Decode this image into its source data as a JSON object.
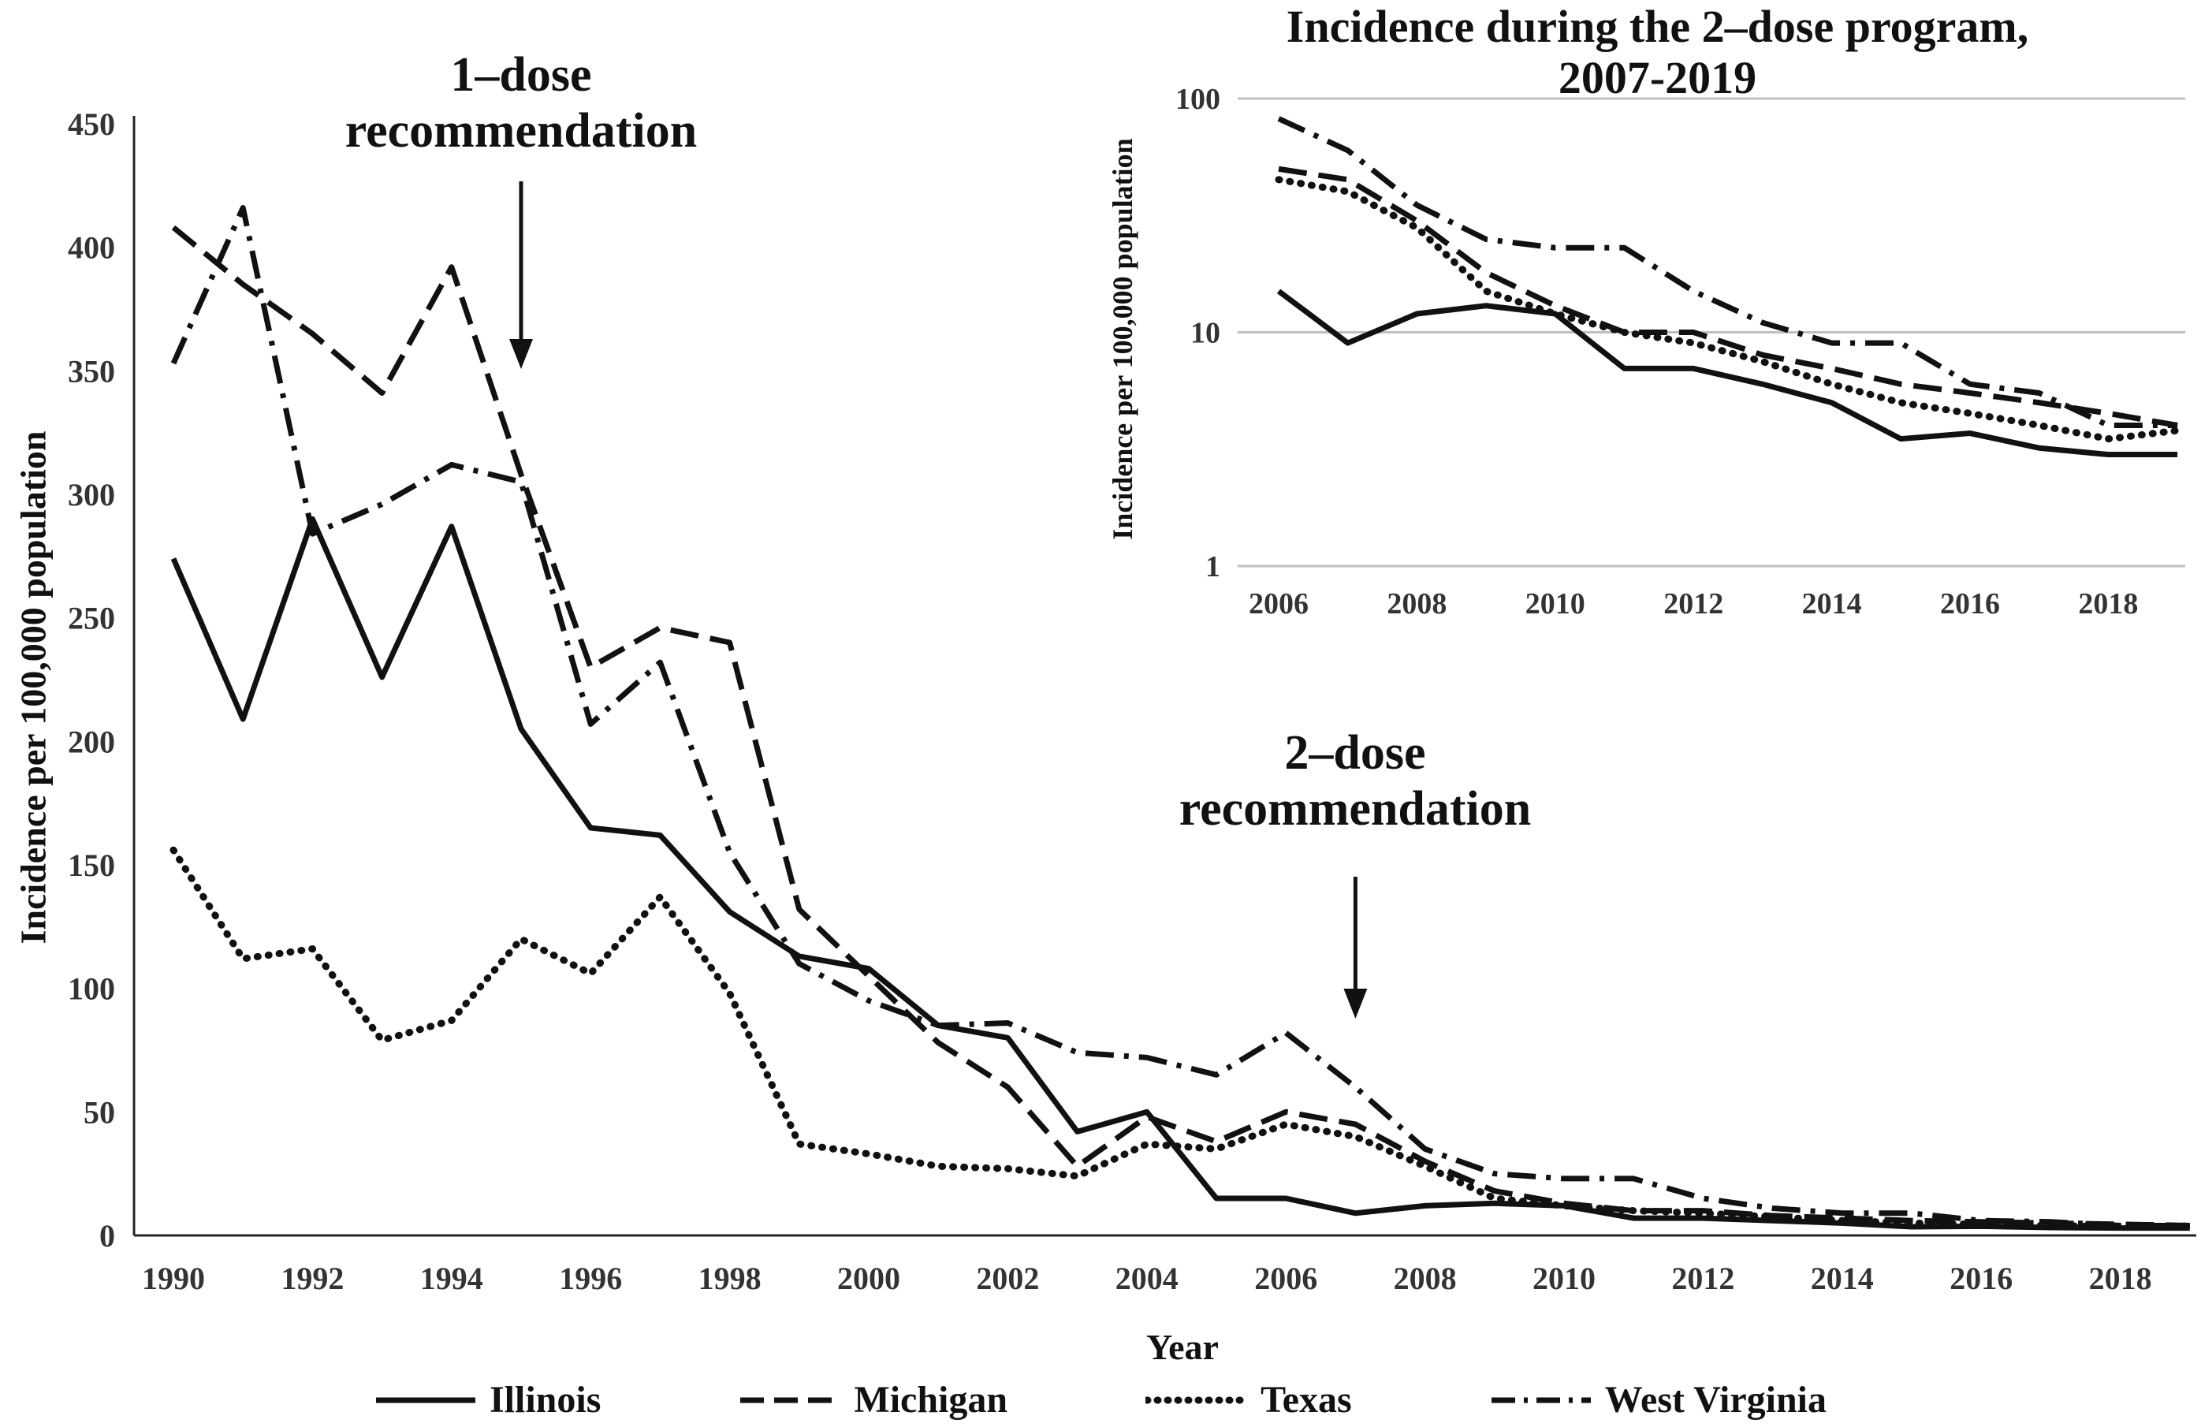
{
  "figure": {
    "background": "#ffffff",
    "line_color": "#111111",
    "axis_color": "#262626",
    "grid_color": "#bfbfbf"
  },
  "main_chart": {
    "ylabel": "Incidence per 100,000 population",
    "xlabel": "Year",
    "yticks": [
      0,
      50,
      100,
      150,
      200,
      250,
      300,
      350,
      400,
      450
    ],
    "xticks": [
      1990,
      1992,
      1994,
      1996,
      1998,
      2000,
      2002,
      2004,
      2006,
      2008,
      2010,
      2012,
      2014,
      2016,
      2018
    ]
  },
  "annotations": {
    "dose1": {
      "line1": "1–dose",
      "line2": "recommendation"
    },
    "dose2": {
      "line1": "2–dose",
      "line2": "recommendation"
    }
  },
  "inset_chart": {
    "title_line1": "Incidence during the 2–dose program,",
    "title_line2": "2007-2019",
    "ylabel": "Incidence per 100,000 population",
    "yticks": [
      1,
      10,
      100
    ],
    "xticks": [
      2006,
      2008,
      2010,
      2012,
      2014,
      2016,
      2018
    ]
  },
  "legend": [
    {
      "label": "Illinois",
      "style": "solid"
    },
    {
      "label": "Michigan",
      "style": "long-dash"
    },
    {
      "label": "Texas",
      "style": "dotted"
    },
    {
      "label": "West Virginia",
      "style": "dash-dot"
    }
  ],
  "chart_data": [
    {
      "type": "line",
      "title": "",
      "xlabel": "Year",
      "ylabel": "Incidence per 100,000 population",
      "yscale": "linear",
      "ylim": [
        0,
        450
      ],
      "grid": false,
      "legend_position": "bottom",
      "x": [
        1990,
        1991,
        1992,
        1993,
        1994,
        1995,
        1996,
        1997,
        1998,
        1999,
        2000,
        2001,
        2002,
        2003,
        2004,
        2005,
        2006,
        2007,
        2008,
        2009,
        2010,
        2011,
        2012,
        2013,
        2014,
        2015,
        2016,
        2017,
        2018,
        2019
      ],
      "series": [
        {
          "name": "Illinois",
          "line_style": "solid",
          "values": [
            274,
            209,
            290,
            226,
            287,
            205,
            165,
            162,
            131,
            113,
            108,
            85,
            80,
            42,
            50,
            15,
            15,
            9,
            12,
            13,
            12,
            7,
            7,
            6,
            5,
            3.5,
            3.7,
            3.2,
            3,
            3
          ]
        },
        {
          "name": "Michigan",
          "line_style": "long-dash",
          "values": [
            408,
            385,
            365,
            341,
            392,
            308,
            230,
            246,
            240,
            132,
            105,
            78,
            60,
            28,
            48,
            38,
            50,
            45,
            30,
            18,
            13,
            10,
            10,
            8,
            7,
            6,
            5.5,
            5,
            4.5,
            4
          ]
        },
        {
          "name": "Texas",
          "line_style": "dotted",
          "values": [
            156,
            112,
            116,
            79,
            87,
            120,
            106,
            137,
            98,
            37,
            33,
            28,
            27,
            24,
            37,
            35,
            45,
            40,
            28,
            15,
            12,
            10,
            9,
            7.5,
            6,
            5,
            4.5,
            4,
            3.5,
            3.8
          ]
        },
        {
          "name": "West Virginia",
          "line_style": "dash-dot",
          "values": [
            353,
            416,
            284,
            296,
            312,
            305,
            207,
            232,
            155,
            110,
            95,
            85,
            86,
            74,
            72,
            65,
            82,
            60,
            35,
            25,
            23,
            23,
            15,
            11,
            9,
            9,
            6,
            5.5,
            4,
            4
          ]
        }
      ]
    },
    {
      "type": "line",
      "title": "Incidence during the 2–dose program, 2007-2019",
      "xlabel": "",
      "ylabel": "Incidence per 100,000 population",
      "yscale": "log",
      "ylim": [
        1,
        100
      ],
      "grid": true,
      "x": [
        2006,
        2007,
        2008,
        2009,
        2010,
        2011,
        2012,
        2013,
        2014,
        2015,
        2016,
        2017,
        2018,
        2019
      ],
      "series": [
        {
          "name": "Illinois",
          "line_style": "solid",
          "values": [
            15,
            9,
            12,
            13,
            12,
            7,
            7,
            6,
            5,
            3.5,
            3.7,
            3.2,
            3,
            3
          ]
        },
        {
          "name": "Michigan",
          "line_style": "long-dash",
          "values": [
            50,
            45,
            30,
            18,
            13,
            10,
            10,
            8,
            7,
            6,
            5.5,
            5,
            4.5,
            4
          ]
        },
        {
          "name": "Texas",
          "line_style": "dotted",
          "values": [
            45,
            40,
            28,
            15,
            12,
            10,
            9,
            7.5,
            6,
            5,
            4.5,
            4,
            3.5,
            3.8
          ]
        },
        {
          "name": "West Virginia",
          "line_style": "dash-dot",
          "values": [
            82,
            60,
            35,
            25,
            23,
            23,
            15,
            11,
            9,
            9,
            6,
            5.5,
            4,
            4
          ]
        }
      ]
    }
  ]
}
